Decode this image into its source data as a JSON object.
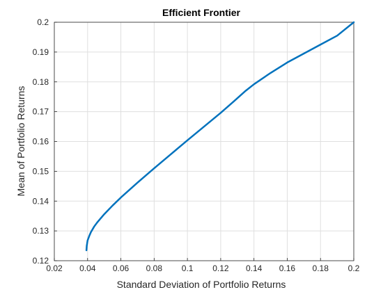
{
  "chart_data": {
    "type": "line",
    "title": "Efficient Frontier",
    "xlabel": "Standard Deviation of Portfolio Returns",
    "ylabel": "Mean of Portfolio Returns",
    "xlim": [
      0.02,
      0.2
    ],
    "ylim": [
      0.12,
      0.2
    ],
    "xticks": [
      "0.02",
      "0.04",
      "0.06",
      "0.08",
      "0.1",
      "0.12",
      "0.14",
      "0.16",
      "0.18",
      "0.2"
    ],
    "yticks": [
      "0.12",
      "0.13",
      "0.14",
      "0.15",
      "0.16",
      "0.17",
      "0.18",
      "0.19",
      "0.2"
    ],
    "grid": true,
    "series": [
      {
        "color": "#0072BD",
        "x": [
          0.0393,
          0.0395,
          0.04,
          0.041,
          0.042,
          0.044,
          0.046,
          0.05,
          0.055,
          0.06,
          0.07,
          0.08,
          0.09,
          0.1,
          0.11,
          0.12,
          0.128,
          0.135,
          0.14,
          0.15,
          0.16,
          0.17,
          0.18,
          0.19,
          0.2
        ],
        "y": [
          0.1235,
          0.125,
          0.1268,
          0.1283,
          0.1296,
          0.1315,
          0.133,
          0.1356,
          0.1385,
          0.1412,
          0.1462,
          0.151,
          0.1557,
          0.1604,
          0.165,
          0.1696,
          0.1735,
          0.177,
          0.1792,
          0.183,
          0.1865,
          0.1895,
          0.1925,
          0.1955,
          0.2
        ]
      }
    ]
  }
}
